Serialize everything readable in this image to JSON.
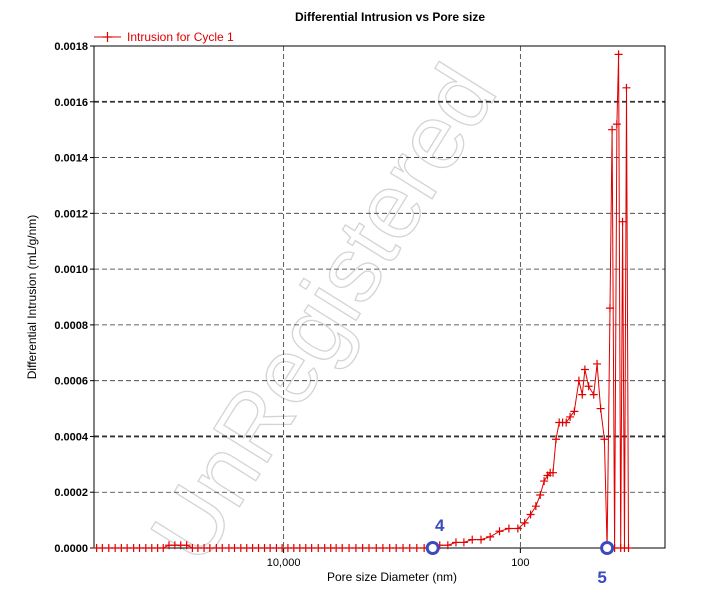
{
  "colors": {
    "series": "#e00000",
    "marker": "#3b4bbf",
    "grid": "#333333",
    "watermark": "#d4d4d4"
  },
  "watermark": "UnRegistered",
  "chart_data": {
    "type": "line",
    "title": "Differential Intrusion vs Pore size",
    "xlabel": "Pore size Diameter (nm)",
    "ylabel": "Differential Intrusion (mL/g/nm)",
    "x_scale": "log",
    "x_reversed": true,
    "xlim": [
      400000,
      6
    ],
    "ylim": [
      0,
      0.0018
    ],
    "x_ticks": [
      {
        "value": 10000,
        "label": "10,000"
      },
      {
        "value": 100,
        "label": "100"
      }
    ],
    "y_ticks": [
      {
        "value": 0,
        "label": "0.0000"
      },
      {
        "value": 0.0002,
        "label": "0.0002"
      },
      {
        "value": 0.0004,
        "label": "0.0004"
      },
      {
        "value": 0.0006,
        "label": "0.0006"
      },
      {
        "value": 0.0008,
        "label": "0.0008"
      },
      {
        "value": 0.001,
        "label": "0.0010"
      },
      {
        "value": 0.0012,
        "label": "0.0012"
      },
      {
        "value": 0.0014,
        "label": "0.0014"
      },
      {
        "value": 0.0016,
        "label": "0.0016"
      },
      {
        "value": 0.0018,
        "label": "0.0018"
      }
    ],
    "grid": true,
    "legend_position": "top-left",
    "series": [
      {
        "name": "Intrusion for Cycle 1",
        "points": [
          [
            380000,
            0
          ],
          [
            340000,
            0
          ],
          [
            300000,
            0
          ],
          [
            265000,
            0
          ],
          [
            235000,
            0
          ],
          [
            210000,
            0
          ],
          [
            185000,
            0
          ],
          [
            165000,
            0
          ],
          [
            146000,
            0
          ],
          [
            130000,
            0
          ],
          [
            116000,
            0
          ],
          [
            104000,
            0
          ],
          [
            93000,
            1e-05
          ],
          [
            83000,
            1e-05
          ],
          [
            74000,
            1e-05
          ],
          [
            66000,
            1e-05
          ],
          [
            59000,
            0
          ],
          [
            53000,
            0
          ],
          [
            47000,
            0
          ],
          [
            42000,
            0
          ],
          [
            37000,
            0
          ],
          [
            33000,
            0
          ],
          [
            29000,
            0
          ],
          [
            26000,
            0
          ],
          [
            23000,
            0
          ],
          [
            20500,
            0
          ],
          [
            18300,
            0
          ],
          [
            16300,
            0
          ],
          [
            14500,
            0
          ],
          [
            13000,
            0
          ],
          [
            11500,
            0
          ],
          [
            10300,
            0
          ],
          [
            9200,
            0
          ],
          [
            8200,
            0
          ],
          [
            7300,
            0
          ],
          [
            6500,
            0
          ],
          [
            5800,
            0
          ],
          [
            5100,
            0
          ],
          [
            4500,
            0
          ],
          [
            4000,
            0
          ],
          [
            3600,
            0
          ],
          [
            3200,
            0
          ],
          [
            2800,
            0
          ],
          [
            2450,
            0
          ],
          [
            2150,
            0
          ],
          [
            1900,
            0
          ],
          [
            1650,
            0
          ],
          [
            1450,
            0
          ],
          [
            1270,
            0
          ],
          [
            1120,
            0
          ],
          [
            980,
            0
          ],
          [
            860,
            0
          ],
          [
            750,
            0
          ],
          [
            650,
            0
          ],
          [
            560,
            5e-06
          ],
          [
            480,
            1e-05
          ],
          [
            410,
            1e-05
          ],
          [
            350,
            2e-05
          ],
          [
            300,
            2e-05
          ],
          [
            255,
            3e-05
          ],
          [
            215,
            3e-05
          ],
          [
            180,
            4e-05
          ],
          [
            150,
            6e-05
          ],
          [
            125,
            7e-05
          ],
          [
            105,
            7e-05
          ],
          [
            92,
            9e-05
          ],
          [
            82,
            0.00012
          ],
          [
            74,
            0.00015
          ],
          [
            68,
            0.00019
          ],
          [
            63,
            0.00024
          ],
          [
            59,
            0.00026
          ],
          [
            56,
            0.00027
          ],
          [
            53,
            0.00027
          ],
          [
            50,
            0.00039
          ],
          [
            47,
            0.00045
          ],
          [
            44,
            0.00045
          ],
          [
            41,
            0.00045
          ],
          [
            38,
            0.00047
          ],
          [
            35,
            0.00049
          ],
          [
            32,
            0.0006
          ],
          [
            30,
            0.00055
          ],
          [
            28.5,
            0.00064
          ],
          [
            26.5,
            0.00058
          ],
          [
            24,
            0.00055
          ],
          [
            22.5,
            0.00066
          ],
          [
            21,
            0.0005
          ],
          [
            19.5,
            0.00039
          ],
          [
            18.5,
            0
          ],
          [
            17.5,
            0.00086
          ],
          [
            16.8,
            0.0015
          ],
          [
            16,
            0
          ],
          [
            15.3,
            0.00152
          ],
          [
            14.8,
            0.00177
          ],
          [
            14.2,
            0
          ],
          [
            13.7,
            0.00117
          ],
          [
            13.2,
            0
          ],
          [
            12.7,
            0.00165
          ],
          [
            12.2,
            0
          ]
        ]
      }
    ],
    "annotations": [
      {
        "label": "4",
        "x": 550,
        "y": 0
      },
      {
        "label": "5",
        "x": 18.5,
        "y": 0
      }
    ]
  }
}
